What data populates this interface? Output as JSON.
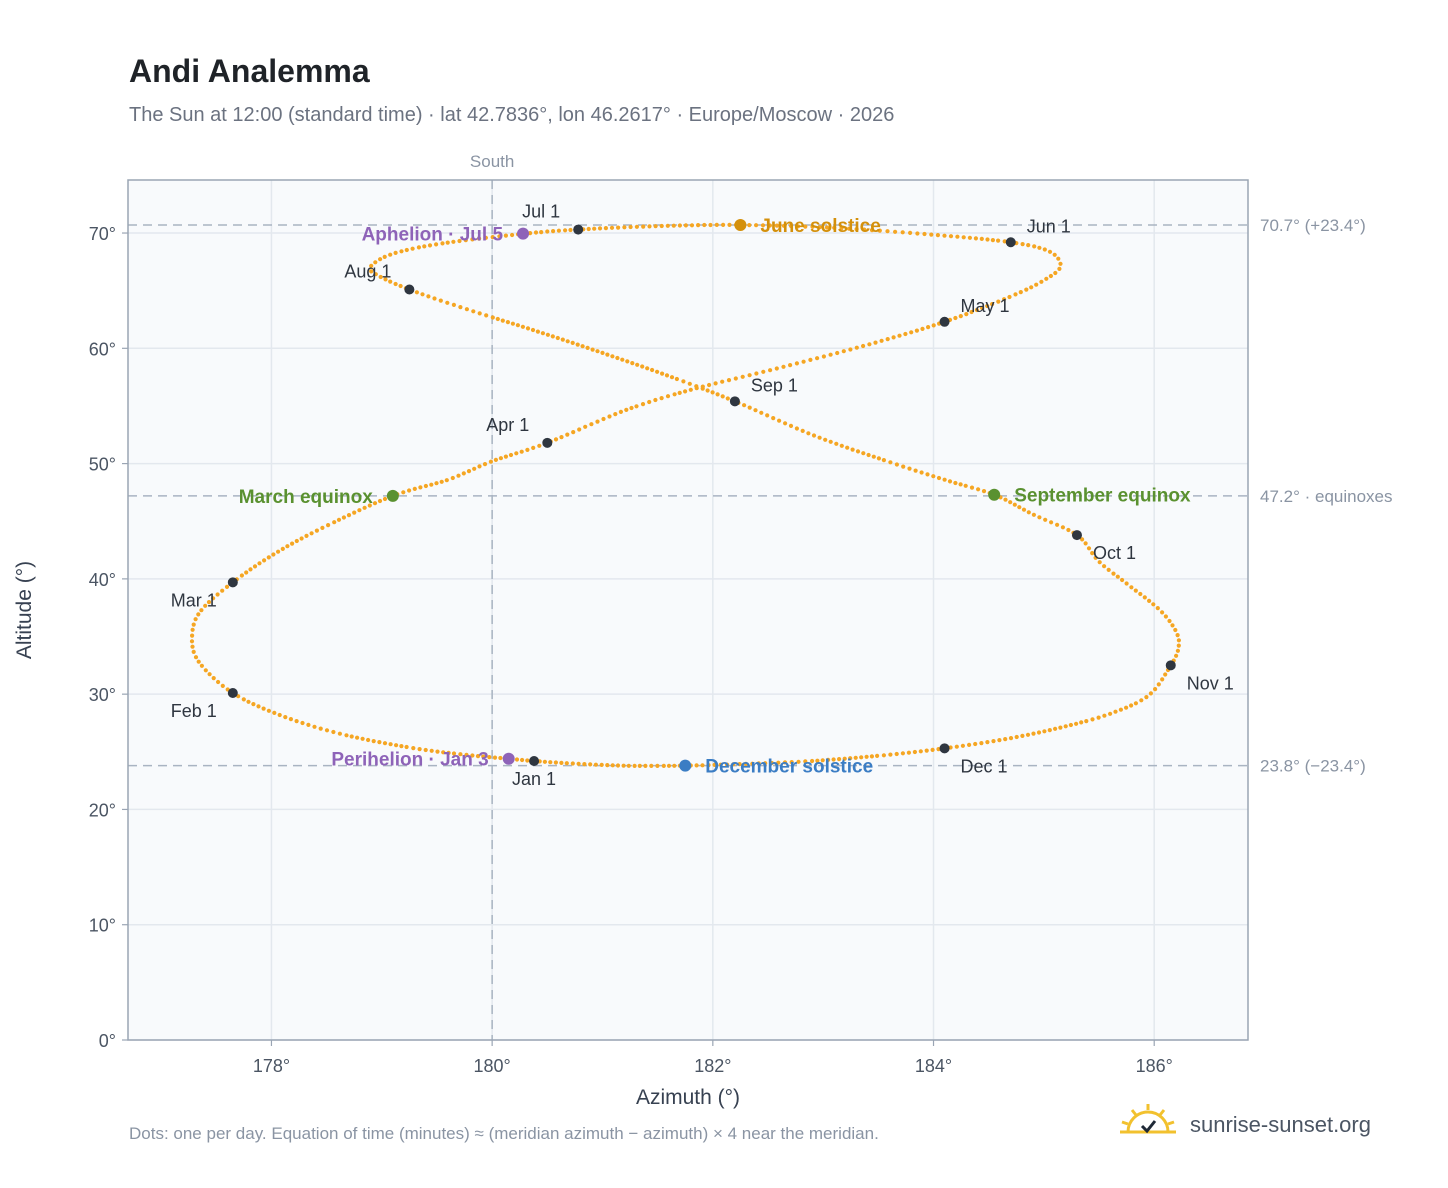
{
  "page": {
    "title": "Andi Analemma",
    "subtitle": "The Sun at 12:00 (standard time) · lat 42.7836°, lon 46.2617° · Europe/Moscow · 2026",
    "footnote": "Dots: one per day. Equation of time (minutes) ≈ (meridian azimuth − azimuth) × 4 near the meridian.",
    "brand": "sunrise-sunset.org"
  },
  "chart_data": {
    "type": "scatter",
    "xlabel": "Azimuth (°)",
    "ylabel": "Altitude (°)",
    "xlim": [
      176.7,
      186.85
    ],
    "ylim": [
      0,
      74.6
    ],
    "x_ticks": [
      178,
      180,
      182,
      184,
      186
    ],
    "x_tick_labels": [
      "178°",
      "180°",
      "182°",
      "184°",
      "186°"
    ],
    "y_ticks": [
      0,
      10,
      20,
      30,
      40,
      50,
      60,
      70
    ],
    "y_tick_labels": [
      "0°",
      "10°",
      "20°",
      "30°",
      "40°",
      "50°",
      "60°",
      "70°"
    ],
    "grid": true,
    "meridian": {
      "x": 180,
      "label": "South"
    },
    "reference_lines": [
      {
        "y": 70.7,
        "label": "70.7° (+23.4°)"
      },
      {
        "y": 47.2,
        "label": "47.2° · equinoxes"
      },
      {
        "y": 23.8,
        "label": "23.8° (−23.4°)"
      }
    ],
    "colors": {
      "path": "#f5a623",
      "month_marker": "#2f3640",
      "june_solstice": "#d4900b",
      "december_solstice": "#3b7dc4",
      "equinox": "#5a9130",
      "apsis": "#8e63b8",
      "plot_bg": "#f8fafc",
      "grid": "#e3e8ee",
      "frame": "#9aa5b4"
    },
    "analemma_path": [
      {
        "x": 180.38,
        "y": 24.2
      },
      {
        "x": 180.7,
        "y": 24.0
      },
      {
        "x": 181.0,
        "y": 23.86
      },
      {
        "x": 181.3,
        "y": 23.78
      },
      {
        "x": 181.75,
        "y": 23.8
      },
      {
        "x": 182.3,
        "y": 23.95
      },
      {
        "x": 182.9,
        "y": 24.2
      },
      {
        "x": 183.55,
        "y": 24.7
      },
      {
        "x": 184.1,
        "y": 25.3
      },
      {
        "x": 184.65,
        "y": 26.1
      },
      {
        "x": 185.15,
        "y": 27.1
      },
      {
        "x": 185.6,
        "y": 28.3
      },
      {
        "x": 185.95,
        "y": 29.9
      },
      {
        "x": 186.15,
        "y": 32.5
      },
      {
        "x": 186.22,
        "y": 34.0
      },
      {
        "x": 186.2,
        "y": 35.4
      },
      {
        "x": 186.05,
        "y": 37.3
      },
      {
        "x": 185.75,
        "y": 39.6
      },
      {
        "x": 185.5,
        "y": 41.5
      },
      {
        "x": 185.3,
        "y": 43.8
      },
      {
        "x": 184.9,
        "y": 45.6
      },
      {
        "x": 184.55,
        "y": 47.3
      },
      {
        "x": 184.1,
        "y": 48.6
      },
      {
        "x": 183.55,
        "y": 50.3
      },
      {
        "x": 182.9,
        "y": 52.5
      },
      {
        "x": 182.2,
        "y": 55.4
      },
      {
        "x": 181.6,
        "y": 57.6
      },
      {
        "x": 181.0,
        "y": 59.6
      },
      {
        "x": 180.4,
        "y": 61.5
      },
      {
        "x": 179.8,
        "y": 63.3
      },
      {
        "x": 179.25,
        "y": 65.1
      },
      {
        "x": 178.95,
        "y": 66.4
      },
      {
        "x": 178.9,
        "y": 67.1
      },
      {
        "x": 179.1,
        "y": 68.2
      },
      {
        "x": 179.55,
        "y": 69.1
      },
      {
        "x": 180.3,
        "y": 69.95
      },
      {
        "x": 180.78,
        "y": 70.3
      },
      {
        "x": 181.5,
        "y": 70.6
      },
      {
        "x": 182.25,
        "y": 70.7
      },
      {
        "x": 183.1,
        "y": 70.45
      },
      {
        "x": 184.0,
        "y": 69.85
      },
      {
        "x": 184.7,
        "y": 69.2
      },
      {
        "x": 185.05,
        "y": 68.4
      },
      {
        "x": 185.15,
        "y": 67.1
      },
      {
        "x": 185.0,
        "y": 65.9
      },
      {
        "x": 184.7,
        "y": 64.5
      },
      {
        "x": 184.1,
        "y": 62.3
      },
      {
        "x": 183.4,
        "y": 60.3
      },
      {
        "x": 182.6,
        "y": 58.3
      },
      {
        "x": 181.8,
        "y": 56.4
      },
      {
        "x": 181.2,
        "y": 54.6
      },
      {
        "x": 180.5,
        "y": 51.8
      },
      {
        "x": 180.0,
        "y": 50.2
      },
      {
        "x": 179.6,
        "y": 48.6
      },
      {
        "x": 179.1,
        "y": 47.2
      },
      {
        "x": 178.5,
        "y": 44.6
      },
      {
        "x": 178.05,
        "y": 42.3
      },
      {
        "x": 177.65,
        "y": 39.7
      },
      {
        "x": 177.35,
        "y": 37.1
      },
      {
        "x": 177.28,
        "y": 34.8
      },
      {
        "x": 177.35,
        "y": 32.7
      },
      {
        "x": 177.65,
        "y": 30.1
      },
      {
        "x": 178.1,
        "y": 28.1
      },
      {
        "x": 178.65,
        "y": 26.5
      },
      {
        "x": 179.3,
        "y": 25.3
      },
      {
        "x": 179.8,
        "y": 24.7
      },
      {
        "x": 180.15,
        "y": 24.4
      },
      {
        "x": 180.38,
        "y": 24.2
      }
    ],
    "month_markers": [
      {
        "label": "Jan 1",
        "x": 180.38,
        "y": 24.2,
        "pos": "below"
      },
      {
        "label": "Feb 1",
        "x": 177.65,
        "y": 30.1,
        "pos": "below-left"
      },
      {
        "label": "Mar 1",
        "x": 177.65,
        "y": 39.7,
        "pos": "below-left"
      },
      {
        "label": "Apr 1",
        "x": 180.5,
        "y": 51.8,
        "pos": "above-left"
      },
      {
        "label": "May 1",
        "x": 184.1,
        "y": 62.3,
        "pos": "above-right"
      },
      {
        "label": "Jun 1",
        "x": 184.7,
        "y": 69.2,
        "pos": "above-right"
      },
      {
        "label": "Jul 1",
        "x": 180.78,
        "y": 70.3,
        "pos": "above-left"
      },
      {
        "label": "Aug 1",
        "x": 179.25,
        "y": 65.1,
        "pos": "above-left"
      },
      {
        "label": "Sep 1",
        "x": 182.2,
        "y": 55.4,
        "pos": "above-right"
      },
      {
        "label": "Oct 1",
        "x": 185.3,
        "y": 43.8,
        "pos": "below-right"
      },
      {
        "label": "Nov 1",
        "x": 186.15,
        "y": 32.5,
        "pos": "below-right"
      },
      {
        "label": "Dec 1",
        "x": 184.1,
        "y": 25.3,
        "pos": "below-right"
      }
    ],
    "events": [
      {
        "label": "June solstice",
        "x": 182.25,
        "y": 70.7,
        "color": "#d4900b",
        "pos": "right"
      },
      {
        "label": "December solstice",
        "x": 181.75,
        "y": 23.8,
        "color": "#3b7dc4",
        "pos": "right"
      },
      {
        "label": "March equinox",
        "x": 179.1,
        "y": 47.2,
        "color": "#5a9130",
        "pos": "left"
      },
      {
        "label": "September equinox",
        "x": 184.55,
        "y": 47.3,
        "color": "#5a9130",
        "pos": "right"
      },
      {
        "label": "Aphelion · Jul 5",
        "x": 180.28,
        "y": 69.95,
        "color": "#8e63b8",
        "pos": "left"
      },
      {
        "label": "Perihelion · Jan 3",
        "x": 180.15,
        "y": 24.4,
        "color": "#8e63b8",
        "pos": "left"
      }
    ]
  }
}
